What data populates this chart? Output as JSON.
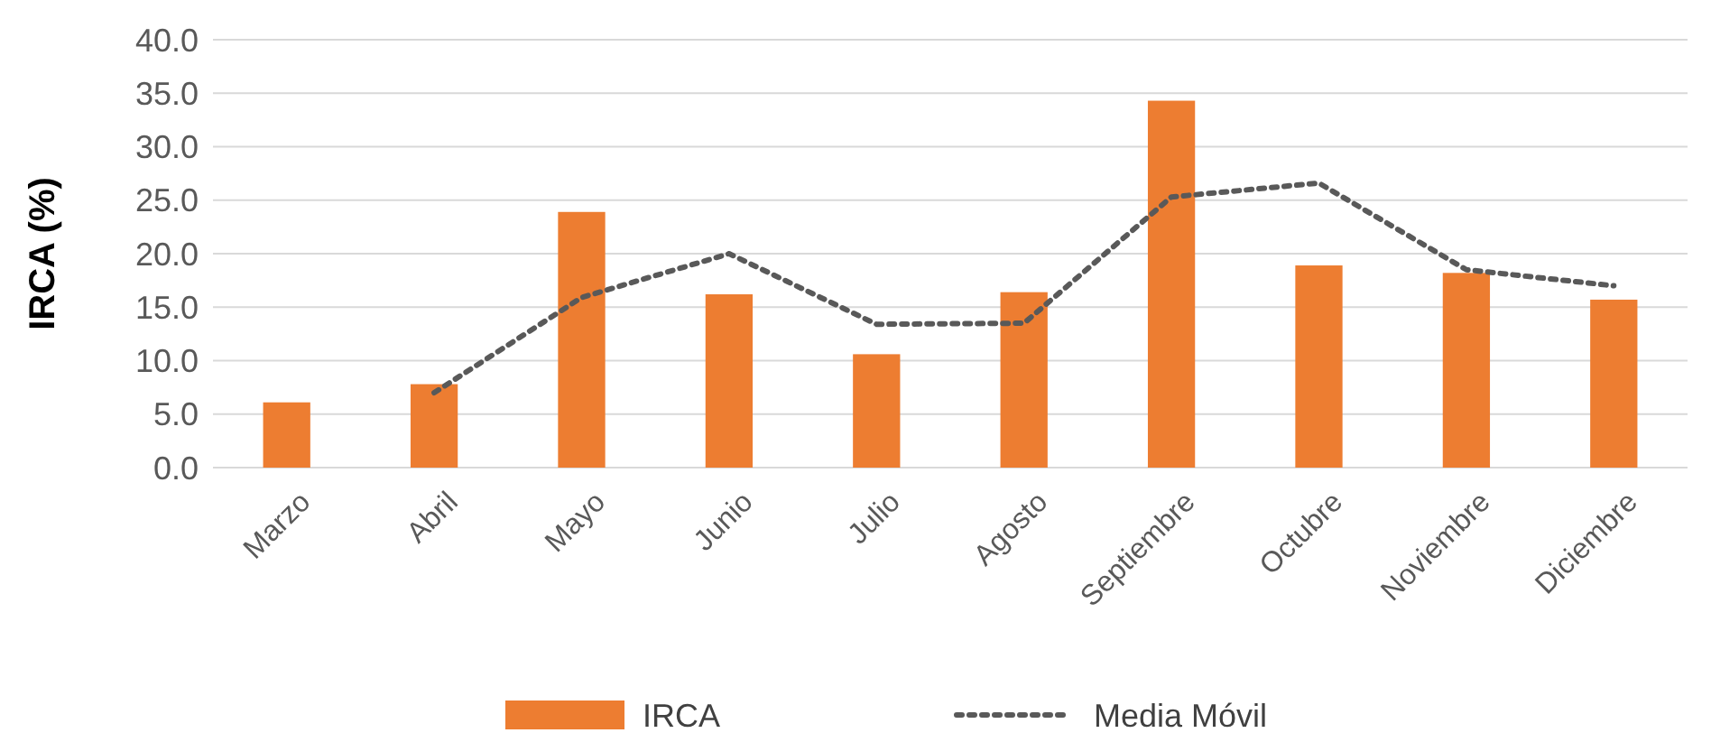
{
  "chart_data": {
    "type": "bar",
    "ylabel": "IRCA (%)",
    "categories": [
      "Marzo",
      "Abril",
      "Mayo",
      "Junio",
      "Julio",
      "Agosto",
      "Septiembre",
      "Octubre",
      "Noviembre",
      "Diciembre"
    ],
    "series": [
      {
        "name": "IRCA",
        "color": "#ed7d31",
        "values": [
          6.1,
          7.8,
          23.9,
          16.2,
          10.6,
          16.4,
          34.3,
          18.9,
          18.2,
          15.7
        ]
      },
      {
        "name": "Media Móvil",
        "type": "line",
        "color": "#595959",
        "line_style": "dotted",
        "marker": "none",
        "values": [
          null,
          7.0,
          15.9,
          20.0,
          13.4,
          13.5,
          25.3,
          26.6,
          18.5,
          17.0
        ]
      }
    ],
    "ylim": [
      0,
      40
    ],
    "yticks": [
      {
        "value": 0,
        "label": "0.0"
      },
      {
        "value": 5,
        "label": "5.0"
      },
      {
        "value": 10,
        "label": "10.0"
      },
      {
        "value": 15,
        "label": "15.0"
      },
      {
        "value": 20,
        "label": "20.0"
      },
      {
        "value": 25,
        "label": "25.0"
      },
      {
        "value": 30,
        "label": "30.0"
      },
      {
        "value": 35,
        "label": "35.0"
      },
      {
        "value": 40,
        "label": "40.0"
      }
    ],
    "grid": "y",
    "legend": "bottom"
  }
}
